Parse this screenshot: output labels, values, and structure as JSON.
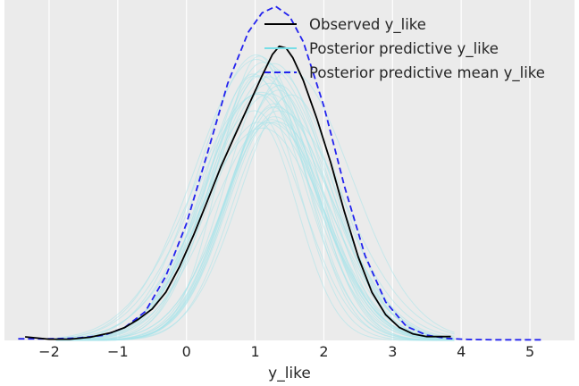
{
  "chart_data": {
    "type": "line",
    "title": "",
    "xlabel": "y_like",
    "ylabel": "",
    "xlim": [
      -2.65,
      5.65
    ],
    "ylim": [
      0,
      0.53
    ],
    "grid": "vertical",
    "legend_position": "top-right",
    "x_ticks": [
      -2,
      -1,
      0,
      1,
      2,
      3,
      4,
      5
    ],
    "x_tick_labels": [
      "−2",
      "−1",
      "0",
      "1",
      "2",
      "3",
      "4",
      "5"
    ],
    "colors": {
      "background": "#ebebeb",
      "grid": "#ffffff",
      "observed": "#000000",
      "posterior_predictive": "#a8e4ea",
      "posterior_predictive_legend": "#77dde6",
      "posterior_mean": "#2222ee"
    },
    "series": [
      {
        "name": "Observed y_like",
        "style": "solid",
        "x": [
          -2.35,
          -2.0,
          -1.7,
          -1.4,
          -1.1,
          -0.9,
          -0.7,
          -0.5,
          -0.3,
          -0.1,
          0.1,
          0.3,
          0.5,
          0.7,
          0.9,
          1.1,
          1.25,
          1.35,
          1.45,
          1.55,
          1.7,
          1.9,
          2.1,
          2.3,
          2.5,
          2.7,
          2.9,
          3.1,
          3.3,
          3.5,
          3.7,
          3.85
        ],
        "y": [
          0.0055,
          0.002,
          0.002,
          0.005,
          0.012,
          0.02,
          0.033,
          0.049,
          0.075,
          0.115,
          0.163,
          0.216,
          0.27,
          0.318,
          0.365,
          0.412,
          0.445,
          0.458,
          0.455,
          0.44,
          0.405,
          0.345,
          0.277,
          0.2,
          0.13,
          0.075,
          0.04,
          0.02,
          0.01,
          0.006,
          0.006,
          0.006
        ]
      },
      {
        "name": "Posterior predictive mean y_like",
        "style": "dashed",
        "x": [
          -2.45,
          -2.0,
          -1.6,
          -1.2,
          -0.9,
          -0.6,
          -0.3,
          0.0,
          0.3,
          0.6,
          0.9,
          1.1,
          1.3,
          1.5,
          1.7,
          2.0,
          2.3,
          2.6,
          2.9,
          3.2,
          3.5,
          3.8,
          4.1,
          4.5,
          5.0,
          5.2
        ],
        "y": [
          0.0025,
          0.0025,
          0.0035,
          0.008,
          0.02,
          0.045,
          0.1,
          0.182,
          0.29,
          0.4,
          0.48,
          0.51,
          0.52,
          0.505,
          0.465,
          0.365,
          0.24,
          0.132,
          0.06,
          0.022,
          0.008,
          0.003,
          0.0015,
          0.001,
          0.001,
          0.001
        ]
      }
    ],
    "posterior_predictive_samples": {
      "name": "Posterior predictive y_like",
      "x_min": -1.9,
      "x_max": 3.9,
      "count": 32,
      "center_min": 0.95,
      "center_max": 1.55,
      "sigma_min": 0.65,
      "sigma_max": 0.9,
      "peak_min": 0.33,
      "peak_max": 0.45
    }
  }
}
